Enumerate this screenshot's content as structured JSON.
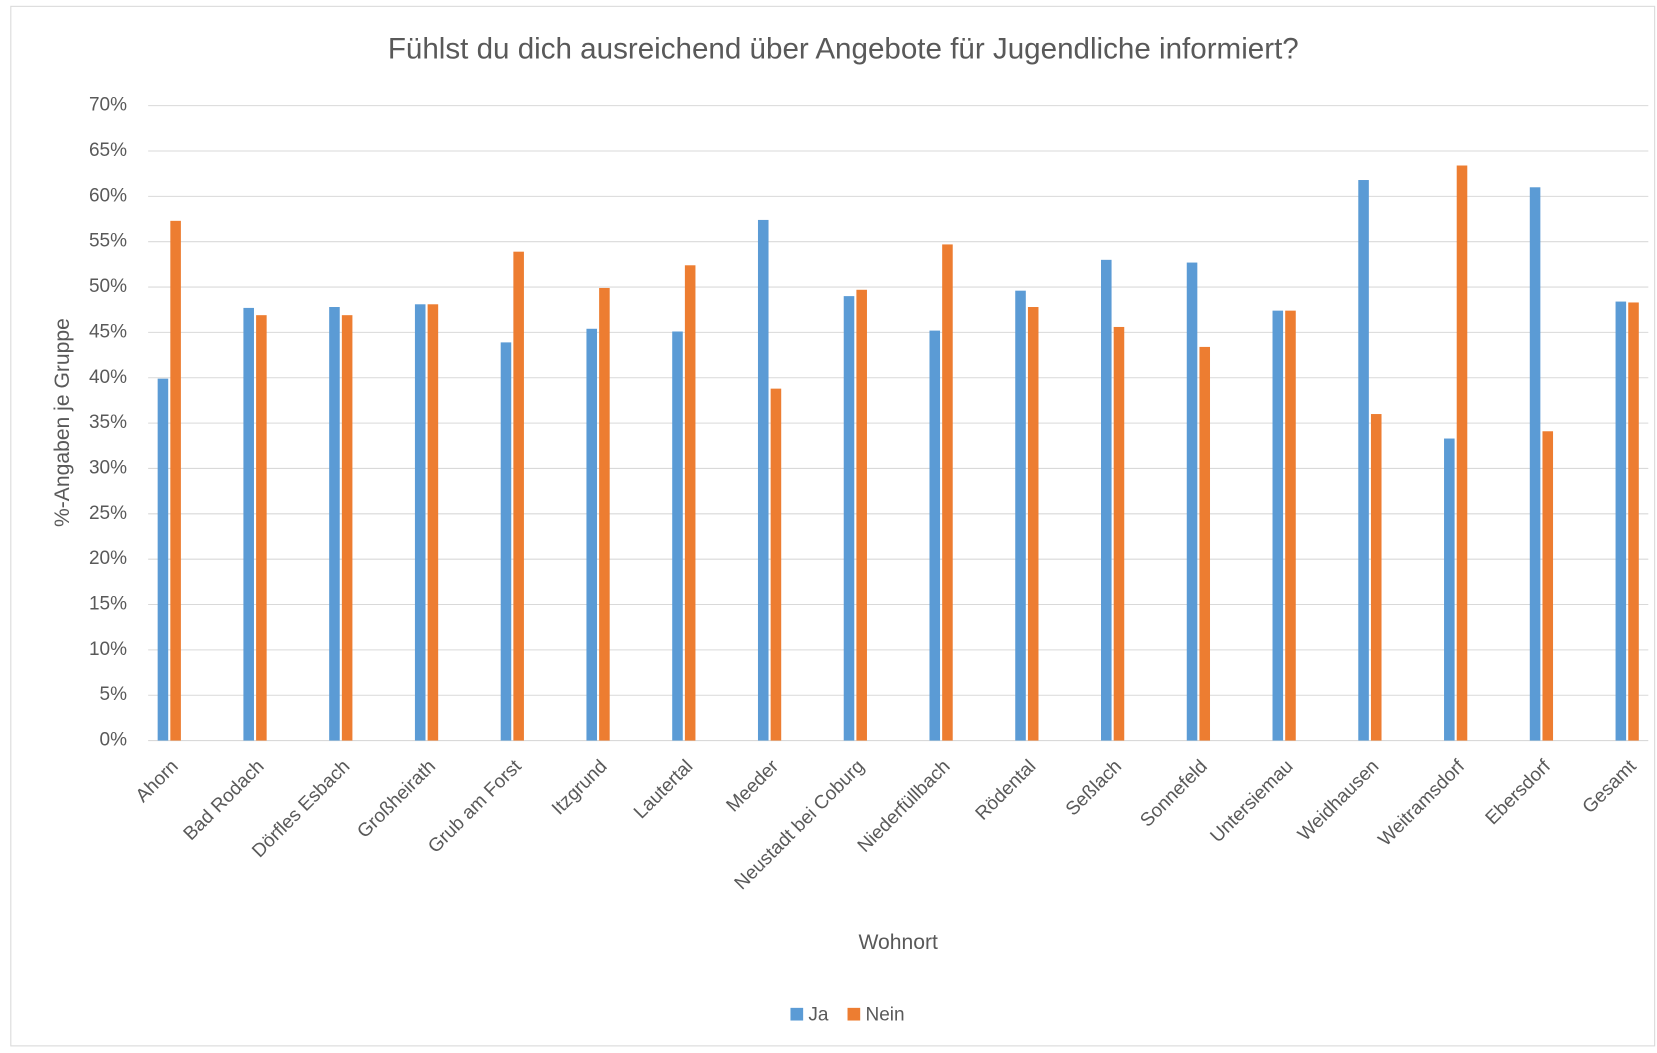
{
  "chart_data": {
    "type": "bar",
    "title": "Fühlst du dich ausreichend über Angebote für Jugendliche informiert?",
    "x_label": "Wohnort",
    "y_label": "%-Angaben je Gruppe",
    "categories": [
      "Ahorn",
      "Bad Rodach",
      "Dörfles Esbach",
      "Großheirath",
      "Grub am Forst",
      "Itzgrund",
      "Lautertal",
      "Meeder",
      "Neustadt bei Coburg",
      "Niederfüllbach",
      "Rödental",
      "Seßlach",
      "Sonnefeld",
      "Untersiemau",
      "Weidhausen",
      "Weitramsdorf",
      "Ebersdorf",
      "Gesamt"
    ],
    "series": [
      {
        "name": "Ja",
        "color": "#5b9bd5",
        "values": [
          39.9,
          47.7,
          47.8,
          48.1,
          43.9,
          45.4,
          45.1,
          57.4,
          49.0,
          45.2,
          49.6,
          53.0,
          52.7,
          47.4,
          61.8,
          33.3,
          61.0,
          48.4
        ]
      },
      {
        "name": "Nein",
        "color": "#ed7d31",
        "values": [
          57.3,
          46.9,
          46.9,
          48.1,
          53.9,
          49.9,
          52.4,
          38.8,
          49.7,
          54.7,
          47.8,
          45.6,
          43.4,
          47.4,
          36.0,
          63.4,
          34.1,
          48.3
        ]
      }
    ],
    "ylim": [
      0,
      70
    ],
    "yticks": [
      {
        "value": 0,
        "label": "0%"
      },
      {
        "value": 5,
        "label": "5%"
      },
      {
        "value": 10,
        "label": "10%"
      },
      {
        "value": 15,
        "label": "15%"
      },
      {
        "value": 20,
        "label": "20%"
      },
      {
        "value": 25,
        "label": "25%"
      },
      {
        "value": 30,
        "label": "30%"
      },
      {
        "value": 35,
        "label": "35%"
      },
      {
        "value": 40,
        "label": "40%"
      },
      {
        "value": 45,
        "label": "45%"
      },
      {
        "value": 50,
        "label": "50%"
      },
      {
        "value": 55,
        "label": "55%"
      },
      {
        "value": 60,
        "label": "60%"
      },
      {
        "value": 65,
        "label": "65%"
      },
      {
        "value": 70,
        "label": "70%"
      }
    ],
    "grid": true,
    "legend": "bottom"
  }
}
